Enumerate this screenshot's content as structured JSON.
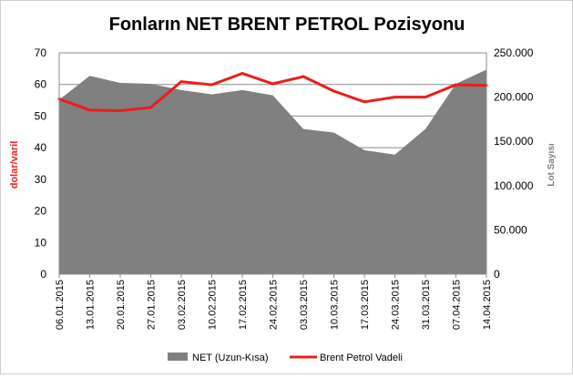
{
  "chart_data": {
    "type": "area",
    "title": "Fonların NET BRENT PETROL Pozisyonu",
    "ylabel_left": "dolar/varil",
    "ylabel_right": "Lot Sayısı",
    "categories": [
      "06.01.2015",
      "13.01.2015",
      "20.01.2015",
      "27.01.2015",
      "03.02.2015",
      "10.02.2015",
      "17.02.2015",
      "24.02.2015",
      "03.03.2015",
      "10.03.2015",
      "17.03.2015",
      "24.03.2015",
      "31.03.2015",
      "07.04.2015",
      "14.04.2015"
    ],
    "ylim_left": [
      0,
      70
    ],
    "yticks_left": [
      "0",
      "10",
      "20",
      "30",
      "40",
      "50",
      "60",
      "70"
    ],
    "ylim_right": [
      0,
      250000
    ],
    "yticks_right": [
      "0",
      "50.000",
      "100.000",
      "150.000",
      "200.000",
      "250.000"
    ],
    "grid": true,
    "legend_position": "bottom",
    "series": [
      {
        "name": "NET (Uzun-Kısa)",
        "type": "area",
        "axis": "right",
        "color": "#808080",
        "values": [
          197000,
          224000,
          216000,
          215000,
          208000,
          203000,
          208000,
          202000,
          164000,
          160000,
          140000,
          135000,
          164000,
          215000,
          231000
        ]
      },
      {
        "name": "Brent Petrol Vadeli",
        "type": "line",
        "axis": "left",
        "color": "#ee1c1c",
        "values": [
          55.4,
          51.9,
          51.7,
          52.7,
          60.9,
          59.9,
          63.5,
          60.2,
          62.5,
          57.9,
          54.5,
          56.0,
          56.0,
          59.9,
          59.7
        ]
      }
    ]
  }
}
